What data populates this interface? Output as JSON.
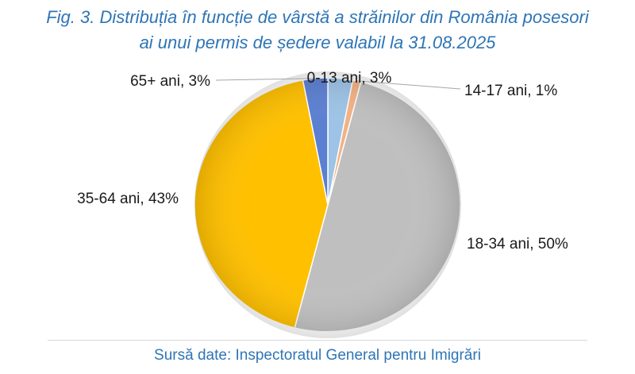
{
  "title": {
    "line1": "Fig. 3. Distribuția în funcție de vârstă a străinilor din România posesori",
    "line2": "ai unui permis de ședere valabil la 31.08.2025"
  },
  "source": "Sursă date: Inspectoratul General pentru Imigrări",
  "chart_data": {
    "type": "pie",
    "unit": "%",
    "slices": [
      {
        "category": "0-13 ani",
        "value": 3,
        "label": "0-13 ani, 3%",
        "color": "#9dc3e6"
      },
      {
        "category": "14-17 ani",
        "value": 1,
        "label": "14-17 ani, 1%",
        "color": "#f4b183"
      },
      {
        "category": "18-34 ani",
        "value": 50,
        "label": "18-34 ani, 50%",
        "color": "#bfbfbf"
      },
      {
        "category": "35-64 ani",
        "value": 43,
        "label": "35-64 ani, 43%",
        "color": "#ffc000"
      },
      {
        "category": "65+ ani",
        "value": 3,
        "label": "65+ ani, 3%",
        "color": "#5b7fd1"
      }
    ],
    "legend": "none",
    "data_labels": "outside"
  }
}
